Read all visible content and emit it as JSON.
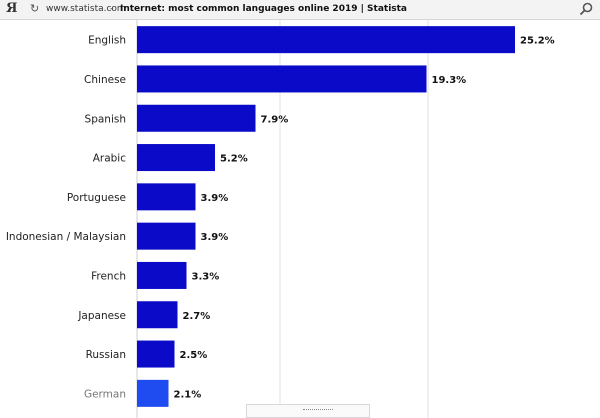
{
  "browser": {
    "logo": "Я",
    "url": "www.statista.com",
    "separator": "-",
    "title": "Internet: most common languages online 2019 | Statista",
    "reload_icon": "reload-icon",
    "search_icon": "search-icon"
  },
  "chart_data": {
    "type": "bar",
    "orientation": "horizontal",
    "categories": [
      "English",
      "Chinese",
      "Spanish",
      "Arabic",
      "Portuguese",
      "Indonesian / Malaysian",
      "French",
      "Japanese",
      "Russian",
      "German"
    ],
    "values": [
      25.2,
      19.3,
      7.9,
      5.2,
      3.9,
      3.9,
      3.3,
      2.7,
      2.5,
      2.1
    ],
    "value_labels": [
      "25.2%",
      "19.3%",
      "7.9%",
      "5.2%",
      "3.9%",
      "3.9%",
      "3.3%",
      "2.7%",
      "2.5%",
      "2.1%"
    ],
    "title": "",
    "xlabel": "",
    "ylabel": "",
    "xlim": [
      0,
      30
    ],
    "grid": true,
    "colors": {
      "bar": "#0a0ac8",
      "bar_last": "#1f4cf0",
      "grid": "#e2e2e2",
      "label": "#222222",
      "label_last": "#777777"
    }
  }
}
